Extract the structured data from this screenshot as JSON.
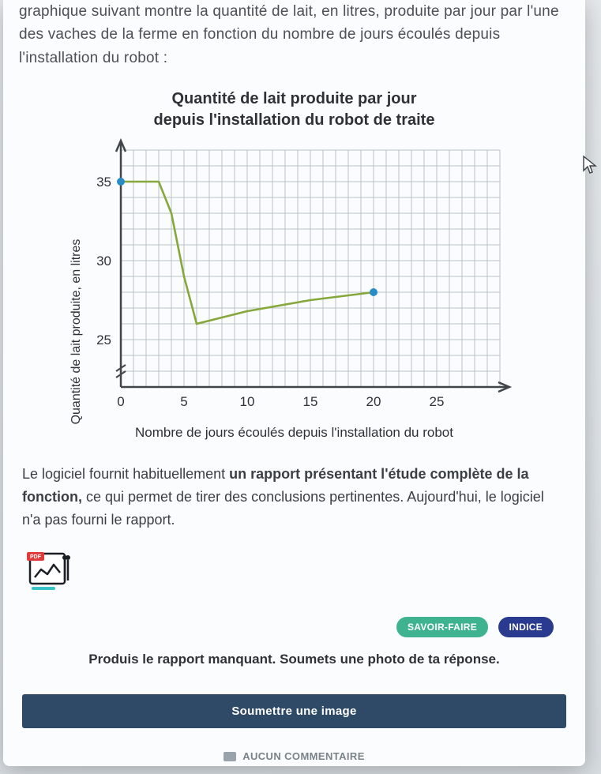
{
  "intro": "graphique suivant montre la quantité de lait, en litres, produite par jour par l'une des vaches de la ferme en fonction du nombre de jours écoulés depuis l'installation du robot :",
  "chart": {
    "type": "line",
    "title_l1": "Quantité de lait produite par jour",
    "title_l2": "depuis l'installation du robot de traite",
    "title_fontsize": 20,
    "ylabel": "Quantité de lait produite, en litres",
    "xlabel": "Nombre de jours écoulés depuis l'installation du robot",
    "label_fontsize": 17,
    "xlim": [
      0,
      30
    ],
    "ylim": [
      22,
      37
    ],
    "x_ticks": [
      0,
      5,
      10,
      15,
      20,
      25
    ],
    "y_ticks": [
      25,
      30,
      35
    ],
    "x_minor_step": 1,
    "y_minor_step": 1,
    "y_axis_break": true,
    "grid_color": "#b8c2c8",
    "axis_color": "#404549",
    "background_color": "#fbfcfd",
    "line_color": "#86a83b",
    "line_width": 2.6,
    "marker_color": "#2a8cc7",
    "marker_radius": 5,
    "points": [
      [
        0,
        35
      ],
      [
        3,
        35
      ],
      [
        4,
        33
      ],
      [
        5,
        29
      ],
      [
        6,
        26
      ],
      [
        7,
        26.2
      ],
      [
        10,
        26.8
      ],
      [
        15,
        27.5
      ],
      [
        18,
        27.8
      ],
      [
        20,
        28
      ]
    ],
    "highlight_points": [
      [
        0,
        35
      ],
      [
        20,
        28
      ]
    ]
  },
  "para2_pre": "Le logiciel fournit habituellement ",
  "para2_b1": "un rapport présentant l'étude complète de la fonction,",
  "para2_post": " ce qui permet de tirer des conclusions pertinentes. Aujourd'hui, le logiciel n'a pas fourni le rapport.",
  "pdf_badge": "PDF",
  "pills": {
    "savoir": "SAVOIR-FAIRE",
    "indice": "INDICE"
  },
  "pill_colors": {
    "savoir": "#3fb28f",
    "indice": "#2a3b8f"
  },
  "instruction": "Produis le rapport manquant. Soumets une photo de ta réponse.",
  "submit_label": "Soumettre une image",
  "submit_bg": "#2f4a66",
  "comment_label": "AUCUN COMMENTAIRE"
}
